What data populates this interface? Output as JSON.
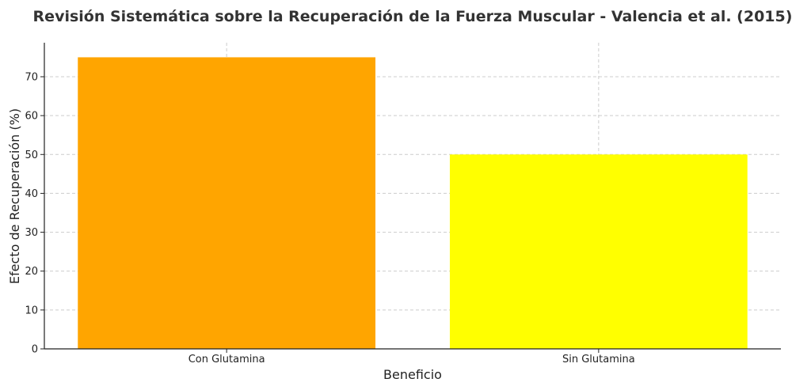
{
  "chart_data": {
    "type": "bar",
    "title": "Revisión Sistemática sobre la Recuperación de la Fuerza Muscular - Valencia et al. (2015)",
    "xlabel": "Beneficio",
    "ylabel": "Efecto de Recuperación (%)",
    "categories": [
      "Con Glutamina",
      "Sin Glutamina"
    ],
    "values": [
      75,
      50
    ],
    "colors": [
      "#ffa500",
      "#ffff00"
    ],
    "ylim": [
      0,
      78.75
    ],
    "yticks": [
      0,
      10,
      20,
      30,
      40,
      50,
      60,
      70
    ],
    "grid": true,
    "legend": "none"
  }
}
